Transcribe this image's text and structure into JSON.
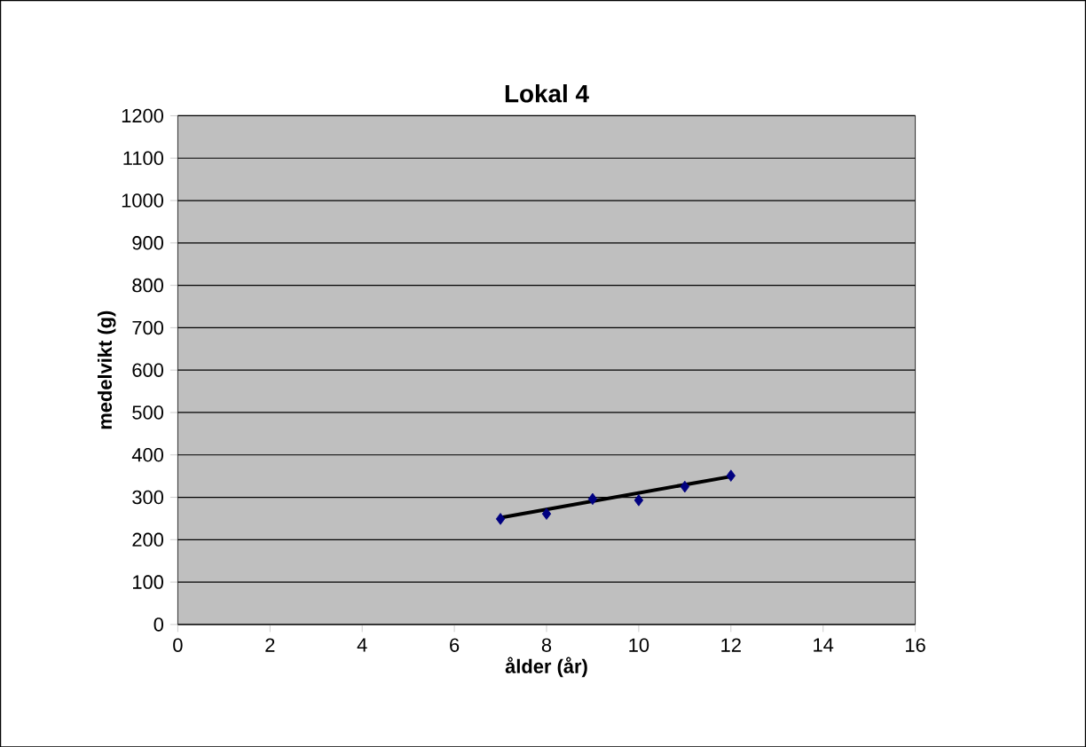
{
  "chart_data": {
    "type": "scatter",
    "title": "Lokal 4",
    "xlabel": "ålder (år)",
    "ylabel": "medelvikt (g)",
    "xlim": [
      0,
      16
    ],
    "xticks": [
      0,
      2,
      4,
      6,
      8,
      10,
      12,
      14,
      16
    ],
    "ylim": [
      0,
      1200
    ],
    "yticks": [
      0,
      100,
      200,
      300,
      400,
      500,
      600,
      700,
      800,
      900,
      1000,
      1100,
      1200
    ],
    "grid": "y",
    "marker": "diamond",
    "series": [
      {
        "color": "#000080",
        "x": [
          7,
          8,
          9,
          10,
          11,
          12
        ],
        "values": [
          249,
          261,
          296,
          293,
          325,
          351
        ]
      },
      {
        "type": "line",
        "color": "#000000",
        "marker": "none",
        "x": [
          7,
          12
        ],
        "values": [
          252,
          349
        ]
      }
    ]
  }
}
